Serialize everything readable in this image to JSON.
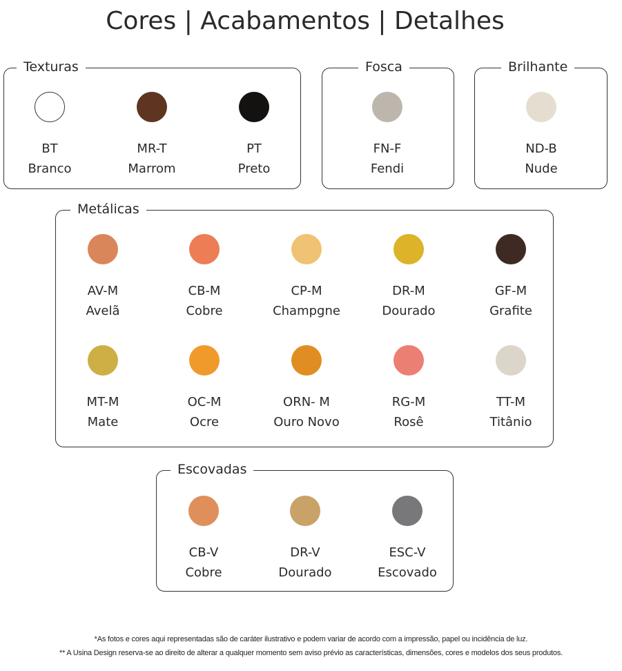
{
  "title": "Cores | Acabamentos | Detalhes",
  "groups": [
    {
      "key": "texturas",
      "label": "Texturas",
      "items": [
        {
          "code": "BT",
          "name": "Branco",
          "color": "#ffffff"
        },
        {
          "code": "MR-T",
          "name": "Marrom",
          "color": "#5e3520"
        },
        {
          "code": "PT",
          "name": "Preto",
          "color": "#141210"
        }
      ]
    },
    {
      "key": "fosca",
      "label": "Fosca",
      "items": [
        {
          "code": "FN-F",
          "name": "Fendi",
          "color": "#bcb6ad"
        }
      ]
    },
    {
      "key": "brilhante",
      "label": "Brilhante",
      "items": [
        {
          "code": "ND-B",
          "name": "Nude",
          "color": "#e6ddd1"
        }
      ]
    },
    {
      "key": "metalicas",
      "label": "Metálicas",
      "items": [
        {
          "code": "AV-M",
          "name": "Avelã",
          "color": "#d9875a"
        },
        {
          "code": "CB-M",
          "name": "Cobre",
          "color": "#ec7d55"
        },
        {
          "code": "CP-M",
          "name": "Champgne",
          "color": "#f0c274"
        },
        {
          "code": "DR-M",
          "name": "Dourado",
          "color": "#dcb329"
        },
        {
          "code": "GF-M",
          "name": "Grafite",
          "color": "#3e2a22"
        },
        {
          "code": "MT-M",
          "name": "Mate",
          "color": "#cdaf45"
        },
        {
          "code": "OC-M",
          "name": "Ocre",
          "color": "#f19a2c"
        },
        {
          "code": "ORN- M",
          "name": "Ouro Novo",
          "color": "#e08e22"
        },
        {
          "code": "RG-M",
          "name": "Rosê",
          "color": "#ec7f74"
        },
        {
          "code": "TT-M",
          "name": "Titânio",
          "color": "#dcd5ca"
        }
      ]
    },
    {
      "key": "escovadas",
      "label": "Escovadas",
      "items": [
        {
          "code": "CB-V",
          "name": "Cobre",
          "color": "#df8f5a"
        },
        {
          "code": "DR-V",
          "name": "Dourado",
          "color": "#c9a267"
        },
        {
          "code": "ESC-V",
          "name": "Escovado",
          "color": "#78777a"
        }
      ]
    }
  ],
  "footnotes": [
    "*As fotos e cores aqui representadas são de caráter ilustrativo e podem variar de acordo com a impressão, papel ou incidência de luz.",
    "** A Usina Design reserva-se ao direito de alterar a qualquer momento sem  aviso prévio  as características, dimensões, cores e modelos dos seus produtos."
  ]
}
